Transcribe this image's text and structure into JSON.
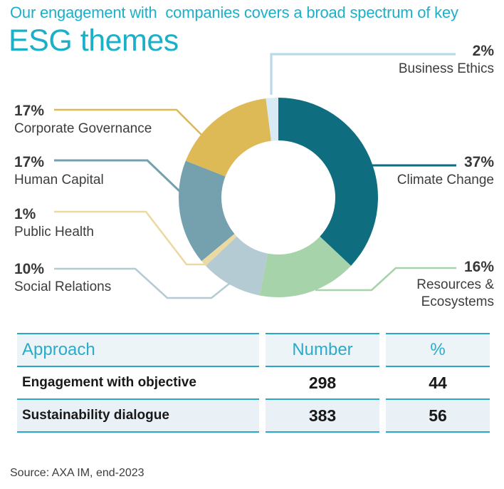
{
  "title": {
    "line1": "Our engagement with  companies covers a broad spectrum of key",
    "line2": "ESG themes"
  },
  "colors": {
    "heading_accent": "#1cb0c8",
    "table_line": "#29a8c8",
    "table_header_text": "#2baac9",
    "table_header_bg": "#edf4f7",
    "table_alt_row_bg": "#e9f1f6",
    "label_text": "#3d3d3d"
  },
  "chart_data": {
    "type": "pie",
    "subtype": "donut",
    "title": "Our engagement with companies covers a broad spectrum of key ESG themes",
    "direction": "clockwise",
    "start_angle_deg": 0,
    "hole_ratio": 0.57,
    "categories": [
      "Climate Change",
      "Resources & Ecosystems",
      "Social Relations",
      "Public Health",
      "Human Capital",
      "Corporate Governance",
      "Business Ethics"
    ],
    "values": [
      37,
      16,
      10,
      1,
      17,
      17,
      2
    ],
    "slices": [
      {
        "label": "Climate Change",
        "pct": 37,
        "pct_text": "37%",
        "color": "#0e6e80",
        "side": "right"
      },
      {
        "label": "Resources & Ecosystems",
        "pct": 16,
        "pct_text": "16%",
        "color": "#a7d3aa",
        "side": "right"
      },
      {
        "label": "Social Relations",
        "pct": 10,
        "pct_text": "10%",
        "color": "#b5cbd3",
        "side": "left"
      },
      {
        "label": "Public Health",
        "pct": 1,
        "pct_text": "1%",
        "color": "#ecd9a2",
        "side": "left"
      },
      {
        "label": "Human Capital",
        "pct": 17,
        "pct_text": "17%",
        "color": "#74a1ad",
        "side": "left"
      },
      {
        "label": "Corporate Governance",
        "pct": 17,
        "pct_text": "17%",
        "color": "#ddba56",
        "side": "left"
      },
      {
        "label": "Business Ethics",
        "pct": 2,
        "pct_text": "2%",
        "color": "#d8eaf3",
        "line_color": "#b9d9e9",
        "side": "right"
      }
    ]
  },
  "table": {
    "headers": [
      "Approach",
      "Number",
      "%"
    ],
    "rows": [
      {
        "approach": "Engagement with objective",
        "number": "298",
        "pct": "44"
      },
      {
        "approach": "Sustainability dialogue",
        "number": "383",
        "pct": "56"
      }
    ]
  },
  "source": "Source: AXA IM, end-2023"
}
